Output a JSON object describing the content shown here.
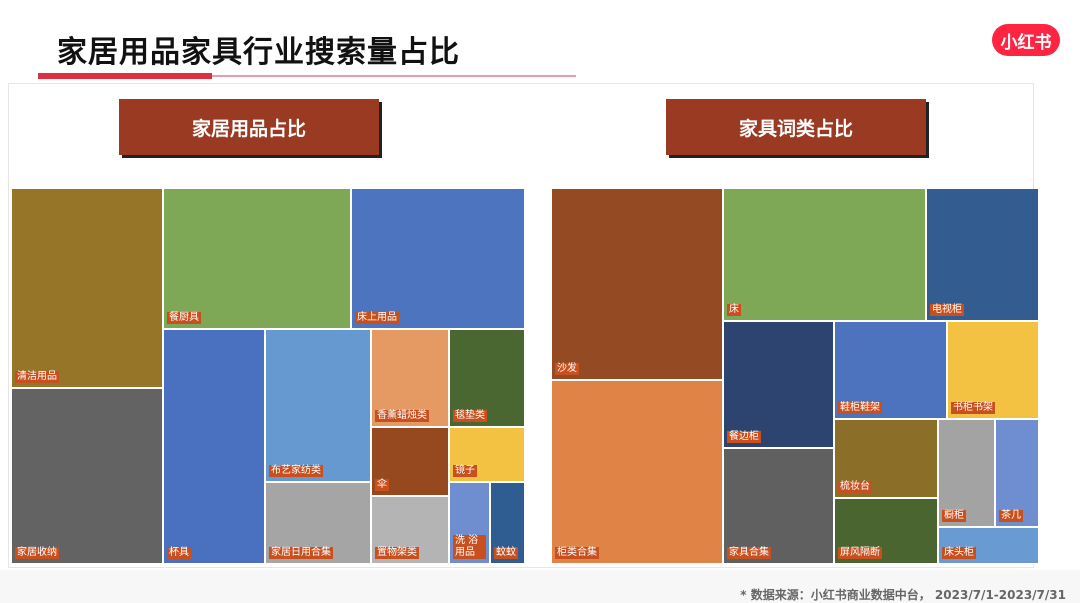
{
  "page": {
    "title": "家居用品家具行业搜索量占比",
    "logo_text": "小红书",
    "footer": "* 数据来源：小红书商业数据中台， 2023/7/1-2023/7/31"
  },
  "chart_data": [
    {
      "type": "treemap",
      "title": "家居用品占比",
      "tiles": [
        {
          "label": "清洁用品",
          "color": "#967528"
        },
        {
          "label": "家居收纳",
          "color": "#636363"
        },
        {
          "label": "餐厨具",
          "color": "#7ea855"
        },
        {
          "label": "床上用品",
          "color": "#4d75bf"
        },
        {
          "label": "杯具",
          "color": "#4a71c0"
        },
        {
          "label": "布艺家纺类",
          "color": "#6599d0"
        },
        {
          "label": "家居日用合集",
          "color": "#a5a5a5"
        },
        {
          "label": "香薰蜡烛类",
          "color": "#e59a64"
        },
        {
          "label": "毯垫类",
          "color": "#4b6731"
        },
        {
          "label": "伞",
          "color": "#96481f"
        },
        {
          "label": "镜子",
          "color": "#f3c242"
        },
        {
          "label": "置物架类",
          "color": "#b4b4b4"
        },
        {
          "label": "洗 浴 用品",
          "color": "#6f8ecf"
        },
        {
          "label": "蚊蚊",
          "color": "#2f5d92"
        }
      ]
    },
    {
      "type": "treemap",
      "title": "家具词类占比",
      "tiles": [
        {
          "label": "沙发",
          "color": "#944a23"
        },
        {
          "label": "柜类合集",
          "color": "#df8346"
        },
        {
          "label": "床",
          "color": "#7ea855"
        },
        {
          "label": "电视柜",
          "color": "#335d91"
        },
        {
          "label": "餐边柜",
          "color": "#2d4370"
        },
        {
          "label": "家具合集",
          "color": "#606060"
        },
        {
          "label": "鞋柜鞋架",
          "color": "#4d73bf"
        },
        {
          "label": "书柜书架",
          "color": "#f3c242"
        },
        {
          "label": "梳妆台",
          "color": "#8b6f28"
        },
        {
          "label": "屏风隔断",
          "color": "#4a6530"
        },
        {
          "label": "橱柜",
          "color": "#a3a3a3"
        },
        {
          "label": "茶几",
          "color": "#6f8ecf"
        },
        {
          "label": "床头柜",
          "color": "#6a9ad2"
        }
      ]
    }
  ]
}
